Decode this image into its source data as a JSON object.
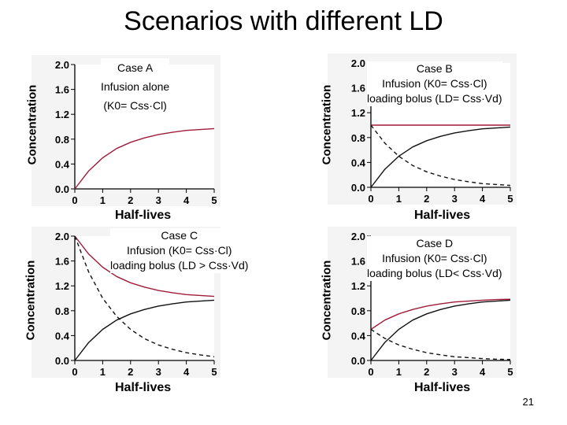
{
  "slide": {
    "title": "Scenarios with different LD",
    "number": "21"
  },
  "chart_data": [
    {
      "type": "line",
      "ylabel": "Concentration",
      "xlabel": "Half-lives",
      "caption": [
        "Case A",
        "Infusion alone",
        "(K0= Css·Cl)"
      ],
      "xlim": [
        0,
        5
      ],
      "ylim": [
        0,
        2
      ],
      "xticks": [
        "0",
        "1",
        "2",
        "3",
        "4",
        "5"
      ],
      "yticks": [
        "0.0",
        "0.4",
        "0.8",
        "1.2",
        "1.6",
        "2.0"
      ],
      "series": [
        {
          "color": "#a01c3a",
          "style": "solid",
          "x": [
            0,
            0.5,
            1,
            1.5,
            2,
            2.5,
            3,
            3.5,
            4,
            4.5,
            5
          ],
          "y": [
            0,
            0.29,
            0.5,
            0.65,
            0.75,
            0.82,
            0.875,
            0.91,
            0.94,
            0.955,
            0.97
          ]
        }
      ]
    },
    {
      "type": "line",
      "ylabel": "Concentration",
      "xlabel": "Half-lives",
      "caption": [
        "Case B",
        "Infusion (K0= Css·Cl)",
        "loading bolus (LD= Css·Vd)"
      ],
      "xlim": [
        0,
        5
      ],
      "ylim": [
        0,
        2
      ],
      "xticks": [
        "0",
        "1",
        "2",
        "3",
        "4",
        "5"
      ],
      "yticks": [
        "0.0",
        "0.4",
        "0.8",
        "1.2",
        "1.6",
        "2.0"
      ],
      "series": [
        {
          "color": "#a01c3a",
          "style": "solid",
          "x": [
            0,
            5
          ],
          "y": [
            1.0,
            1.0
          ]
        },
        {
          "color": "#111111",
          "style": "solid",
          "x": [
            0,
            0.5,
            1,
            1.5,
            2,
            2.5,
            3,
            3.5,
            4,
            4.5,
            5
          ],
          "y": [
            0,
            0.29,
            0.5,
            0.65,
            0.75,
            0.82,
            0.875,
            0.91,
            0.94,
            0.955,
            0.97
          ]
        },
        {
          "color": "#111111",
          "style": "dashed",
          "x": [
            0,
            0.5,
            1,
            1.5,
            2,
            2.5,
            3,
            3.5,
            4,
            4.5,
            5
          ],
          "y": [
            1.0,
            0.71,
            0.5,
            0.35,
            0.25,
            0.18,
            0.125,
            0.09,
            0.06,
            0.045,
            0.03
          ]
        }
      ]
    },
    {
      "type": "line",
      "ylabel": "Concentration",
      "xlabel": "Half-lives",
      "caption": [
        "Case C",
        "Infusion (K0= Css·Cl)",
        "loading bolus (LD > Css·Vd)"
      ],
      "xlim": [
        0,
        5
      ],
      "ylim": [
        0,
        2
      ],
      "xticks": [
        "0",
        "1",
        "2",
        "3",
        "4",
        "5"
      ],
      "yticks": [
        "0.0",
        "0.4",
        "0.8",
        "1.2",
        "1.6",
        "2.0"
      ],
      "series": [
        {
          "color": "#a01c3a",
          "style": "solid",
          "x": [
            0,
            0.5,
            1,
            1.5,
            2,
            2.5,
            3,
            3.5,
            4,
            4.5,
            5
          ],
          "y": [
            2.0,
            1.71,
            1.5,
            1.35,
            1.25,
            1.18,
            1.125,
            1.09,
            1.06,
            1.045,
            1.03
          ]
        },
        {
          "color": "#111111",
          "style": "solid",
          "x": [
            0,
            0.5,
            1,
            1.5,
            2,
            2.5,
            3,
            3.5,
            4,
            4.5,
            5
          ],
          "y": [
            0,
            0.29,
            0.5,
            0.65,
            0.75,
            0.82,
            0.875,
            0.91,
            0.94,
            0.955,
            0.97
          ]
        },
        {
          "color": "#111111",
          "style": "dashed",
          "x": [
            0,
            0.5,
            1,
            1.5,
            2,
            2.5,
            3,
            3.5,
            4,
            4.5,
            5
          ],
          "y": [
            2.0,
            1.42,
            1.0,
            0.71,
            0.5,
            0.35,
            0.25,
            0.18,
            0.125,
            0.09,
            0.06
          ]
        }
      ]
    },
    {
      "type": "line",
      "ylabel": "Concentration",
      "xlabel": "Half-lives",
      "caption": [
        "Case D",
        "Infusion (K0= Css·Cl)",
        "loading bolus (LD< Css·Vd)"
      ],
      "xlim": [
        0,
        5
      ],
      "ylim": [
        0,
        2
      ],
      "xticks": [
        "0",
        "1",
        "2",
        "3",
        "4",
        "5"
      ],
      "yticks": [
        "0.0",
        "0.4",
        "0.8",
        "1.2",
        "1.6",
        "2.0"
      ],
      "series": [
        {
          "color": "#a01c3a",
          "style": "solid",
          "x": [
            0,
            0.5,
            1,
            1.5,
            2,
            2.5,
            3,
            3.5,
            4,
            4.5,
            5
          ],
          "y": [
            0.5,
            0.65,
            0.75,
            0.82,
            0.875,
            0.91,
            0.94,
            0.955,
            0.97,
            0.98,
            0.985
          ]
        },
        {
          "color": "#111111",
          "style": "solid",
          "x": [
            0,
            0.5,
            1,
            1.5,
            2,
            2.5,
            3,
            3.5,
            4,
            4.5,
            5
          ],
          "y": [
            0,
            0.29,
            0.5,
            0.65,
            0.75,
            0.82,
            0.875,
            0.91,
            0.94,
            0.955,
            0.97
          ]
        },
        {
          "color": "#111111",
          "style": "dashed",
          "x": [
            0,
            0.5,
            1,
            1.5,
            2,
            2.5,
            3,
            3.5,
            4,
            4.5,
            5
          ],
          "y": [
            0.5,
            0.355,
            0.25,
            0.18,
            0.125,
            0.09,
            0.06,
            0.045,
            0.03,
            0.02,
            0.015
          ]
        }
      ]
    }
  ]
}
